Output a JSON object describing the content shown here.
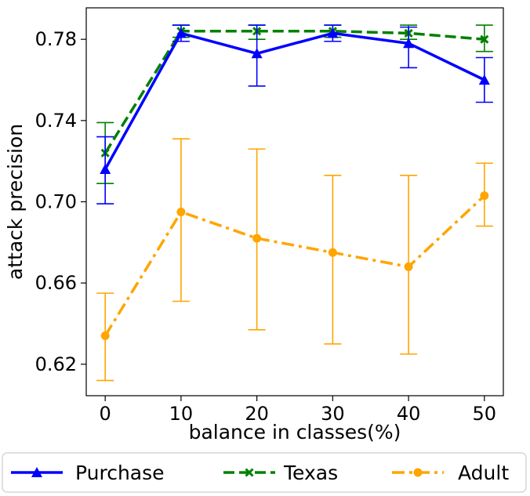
{
  "chart_data": {
    "type": "line",
    "xlabel": "balance in classes(%)",
    "ylabel": "attack precision",
    "x": [
      0,
      10,
      20,
      30,
      40,
      50
    ],
    "xlim": [
      -2.5,
      52.5
    ],
    "ylim": [
      0.6045,
      0.7955
    ],
    "xticks": [
      0,
      10,
      20,
      30,
      40,
      50
    ],
    "yticks": [
      0.62,
      0.66,
      0.7,
      0.74,
      0.78
    ],
    "ytick_labels": [
      "0.62",
      "0.66",
      "0.70",
      "0.74",
      "0.78"
    ],
    "grid": false,
    "legend_position": "bottom",
    "series": [
      {
        "name": "Purchase",
        "color": "#0000ff",
        "marker": "triangle",
        "linestyle": "solid",
        "values": [
          0.716,
          0.783,
          0.773,
          0.783,
          0.778,
          0.76
        ],
        "err_low": [
          0.699,
          0.779,
          0.757,
          0.779,
          0.766,
          0.749
        ],
        "err_high": [
          0.732,
          0.787,
          0.787,
          0.787,
          0.786,
          0.771
        ]
      },
      {
        "name": "Texas",
        "color": "#008000",
        "marker": "x",
        "linestyle": "dashed",
        "values": [
          0.724,
          0.784,
          0.784,
          0.784,
          0.783,
          0.78
        ],
        "err_low": [
          0.709,
          0.781,
          0.78,
          0.781,
          0.78,
          0.774
        ],
        "err_high": [
          0.739,
          0.787,
          0.787,
          0.787,
          0.787,
          0.787
        ]
      },
      {
        "name": "Adult",
        "color": "#ffa500",
        "marker": "circle",
        "linestyle": "dashdot",
        "values": [
          0.634,
          0.695,
          0.682,
          0.675,
          0.668,
          0.703
        ],
        "err_low": [
          0.612,
          0.651,
          0.637,
          0.63,
          0.625,
          0.688
        ],
        "err_high": [
          0.655,
          0.731,
          0.726,
          0.713,
          0.713,
          0.719
        ]
      }
    ]
  }
}
